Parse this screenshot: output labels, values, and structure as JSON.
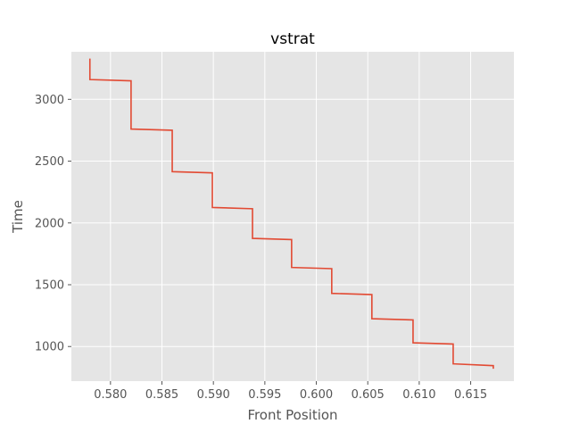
{
  "chart_data": {
    "type": "line",
    "title": "vstrat",
    "xlabel": "Front Position",
    "ylabel": "Time",
    "xlim": [
      0.5762,
      0.6192
    ],
    "ylim": [
      720,
      3385
    ],
    "xticks": [
      0.58,
      0.585,
      0.59,
      0.595,
      0.6,
      0.605,
      0.61,
      0.615
    ],
    "xtick_labels": [
      "0.580",
      "0.585",
      "0.590",
      "0.595",
      "0.600",
      "0.605",
      "0.610",
      "0.615"
    ],
    "yticks": [
      1000,
      1500,
      2000,
      2500,
      3000
    ],
    "ytick_labels": [
      "1000",
      "1500",
      "2000",
      "2500",
      "3000"
    ],
    "grid": true,
    "background_color": "#e5e5e5",
    "grid_color": "#ffffff",
    "series": [
      {
        "color": "#e24a33",
        "x": [
          0.578,
          0.578,
          0.582,
          0.582,
          0.586,
          0.586,
          0.5899,
          0.5899,
          0.5938,
          0.5938,
          0.5976,
          0.5976,
          0.6015,
          0.6015,
          0.6054,
          0.6054,
          0.6094,
          0.6094,
          0.6133,
          0.6133,
          0.6172,
          0.6172
        ],
        "y": [
          3330,
          3160,
          3150,
          2760,
          2750,
          2415,
          2405,
          2125,
          2115,
          1875,
          1865,
          1640,
          1630,
          1430,
          1420,
          1225,
          1215,
          1030,
          1020,
          860,
          845,
          820
        ]
      }
    ]
  }
}
